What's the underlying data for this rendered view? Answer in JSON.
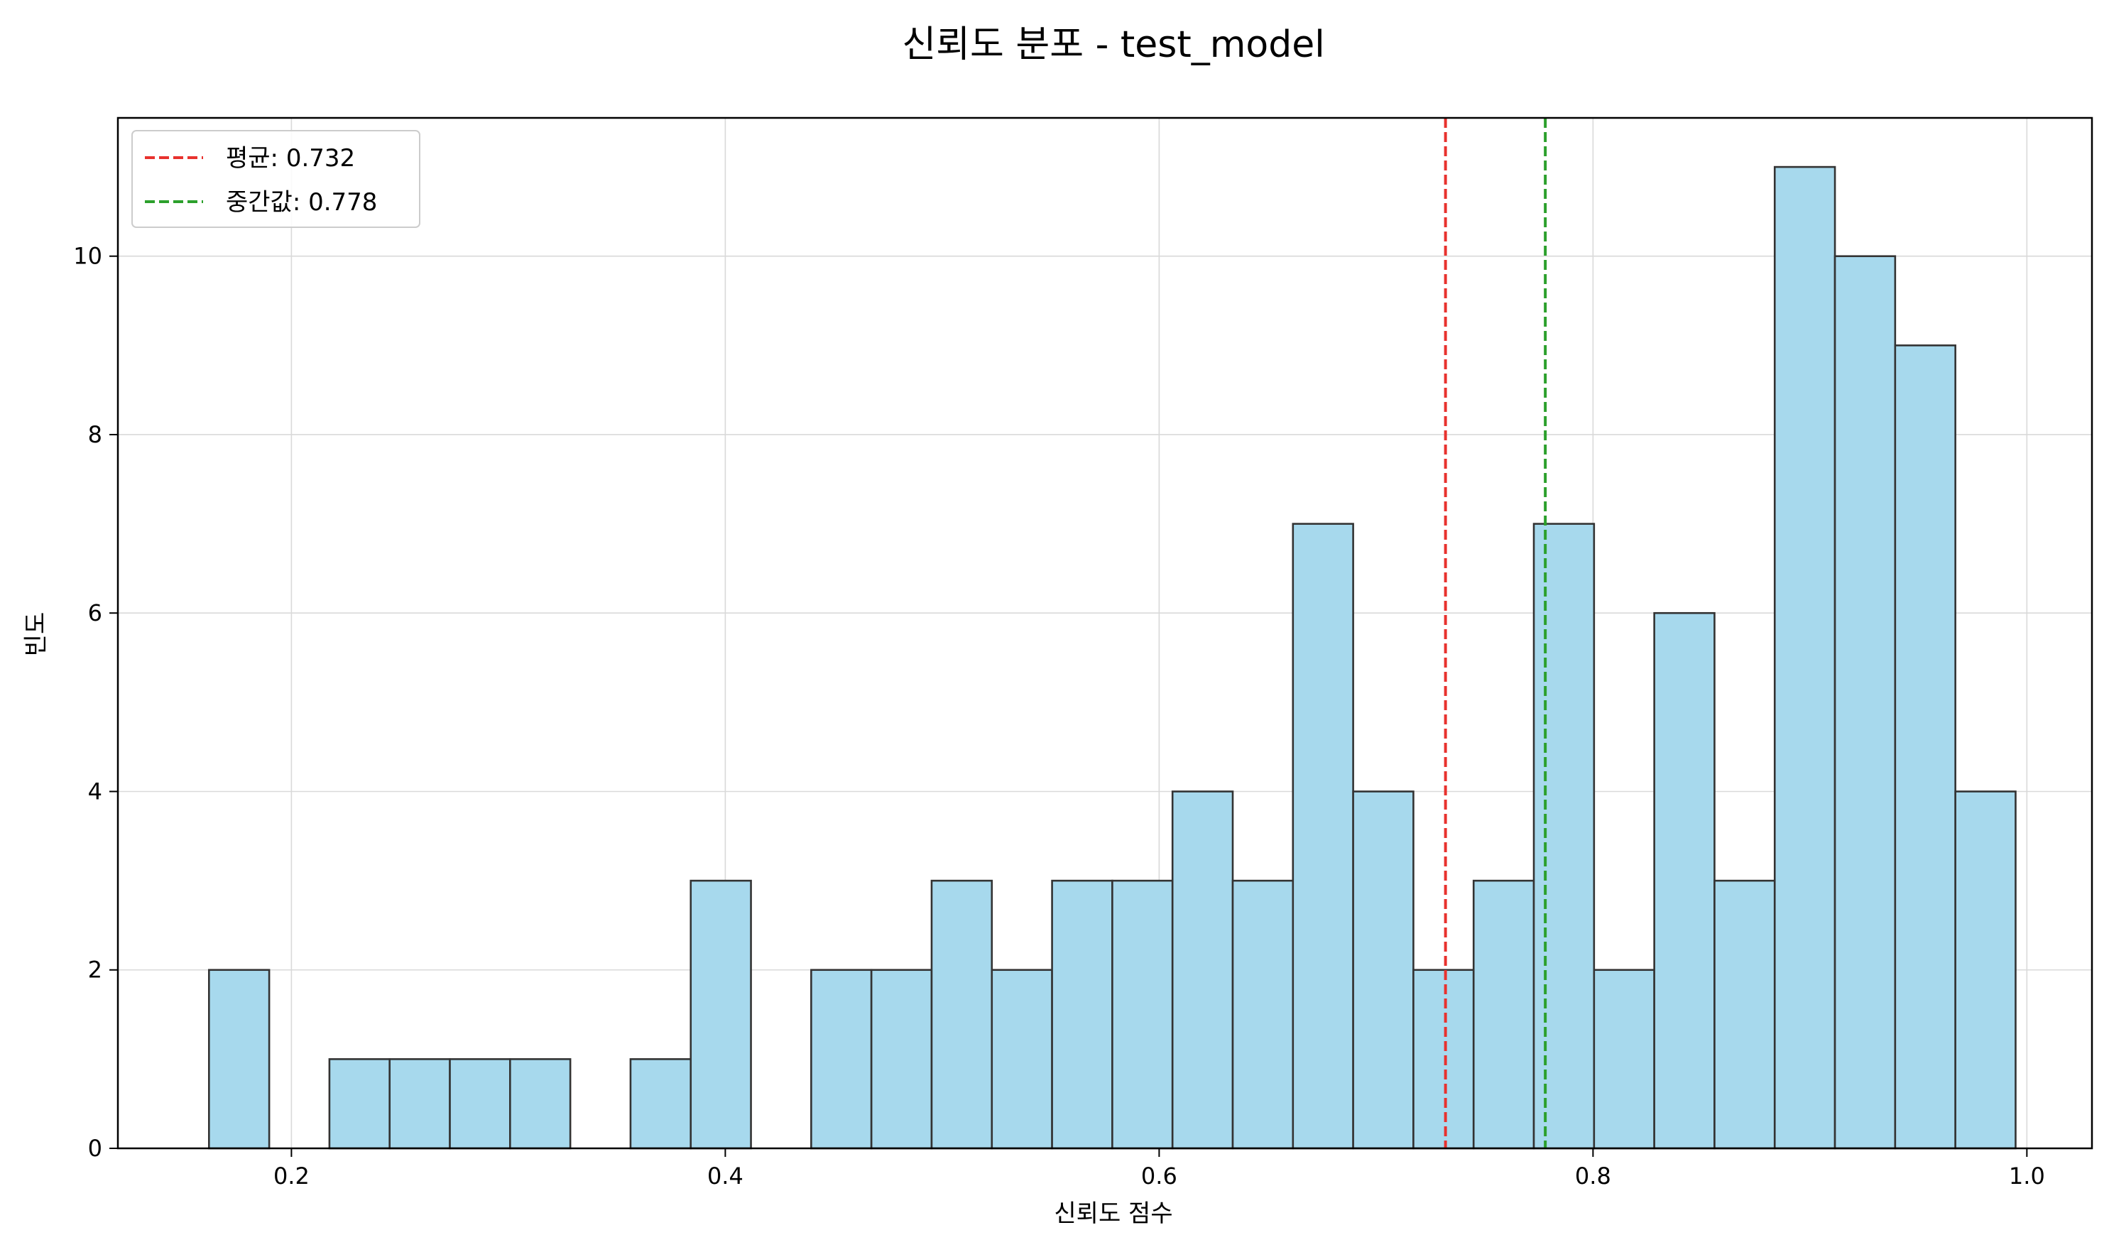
{
  "chart_data": {
    "type": "bar",
    "title": "신뢰도 분포 - test_model",
    "xlabel": "신뢰도 점수",
    "ylabel": "빈도",
    "xlim": [
      0.12,
      1.03
    ],
    "ylim": [
      0,
      11.55
    ],
    "xticks": [
      "0.2",
      "0.4",
      "0.6",
      "0.8",
      "1.0"
    ],
    "yticks": [
      "0",
      "2",
      "4",
      "6",
      "8",
      "10"
    ],
    "grid": true,
    "legend_position": "top-left",
    "bar_color": "#a7d9ed",
    "edge_color": "#333333",
    "bin_start": 0.162,
    "bin_width": 0.02776,
    "values": [
      2,
      0,
      1,
      1,
      1,
      1,
      0,
      1,
      3,
      0,
      2,
      2,
      3,
      2,
      3,
      3,
      4,
      3,
      7,
      4,
      2,
      3,
      7,
      2,
      6,
      3,
      11,
      10,
      9,
      4
    ],
    "reference_lines": [
      {
        "name": "평균: 0.732",
        "x": 0.732,
        "color": "#e8322e",
        "style": "dashed"
      },
      {
        "name": "중간값: 0.778",
        "x": 0.778,
        "color": "#2ca02c",
        "style": "dashed"
      }
    ]
  }
}
